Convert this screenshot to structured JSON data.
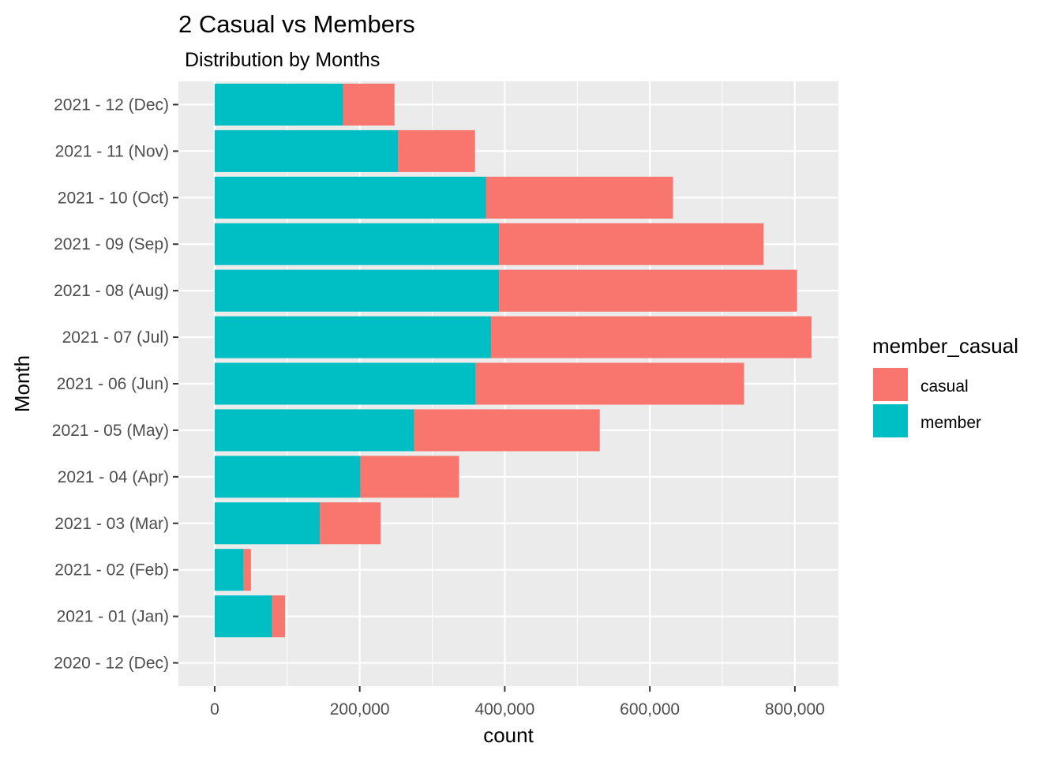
{
  "chart_data": {
    "type": "bar",
    "orientation": "horizontal",
    "stacked": true,
    "title": "2 Casual vs Members",
    "subtitle": "Distribution by Months",
    "xlabel": "count",
    "ylabel": "Month",
    "xlim": [
      -50000,
      860000
    ],
    "x_ticks": [
      0,
      200000,
      400000,
      600000,
      800000
    ],
    "x_tick_labels": [
      "0",
      "200,000",
      "400,000",
      "600,000",
      "800,000"
    ],
    "categories": [
      "2020 - 12 (Dec)",
      "2021 - 01 (Jan)",
      "2021 - 02 (Feb)",
      "2021 - 03 (Mar)",
      "2021 - 04 (Apr)",
      "2021 - 05 (May)",
      "2021 - 06 (Jun)",
      "2021 - 07 (Jul)",
      "2021 - 08 (Aug)",
      "2021 - 09 (Sep)",
      "2021 - 10 (Oct)",
      "2021 - 11 (Nov)",
      "2021 - 12 (Dec)"
    ],
    "series": [
      {
        "name": "member",
        "color": "#00BFC4",
        "values": [
          0,
          79000,
          40000,
          145000,
          201000,
          275000,
          360000,
          381000,
          392000,
          392000,
          374000,
          253000,
          177000
        ]
      },
      {
        "name": "casual",
        "color": "#F8766D",
        "values": [
          0,
          18000,
          10000,
          84000,
          136000,
          256000,
          370000,
          442000,
          411000,
          365000,
          258000,
          106000,
          71000
        ]
      }
    ],
    "legend": {
      "title": "member_casual",
      "position": "right",
      "items": [
        {
          "label": "casual",
          "color": "#F8766D"
        },
        {
          "label": "member",
          "color": "#00BFC4"
        }
      ]
    },
    "grid": true,
    "panel_background": "#EBEBEB",
    "grid_color": "#FFFFFF"
  }
}
